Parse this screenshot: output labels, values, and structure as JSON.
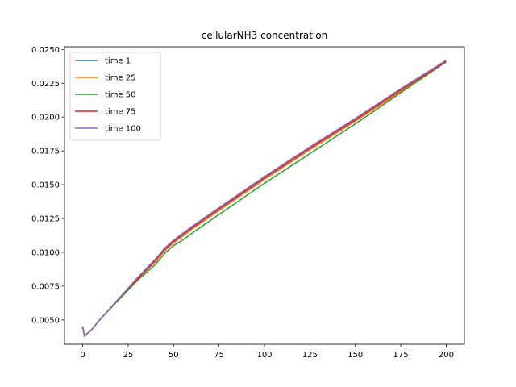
{
  "chart_data": {
    "type": "line",
    "title": "cellularNH3 concentration",
    "xlabel": "",
    "ylabel": "",
    "xlim": [
      -10,
      210
    ],
    "ylim": [
      0.0032,
      0.0252
    ],
    "xticks": [
      0,
      25,
      50,
      75,
      100,
      125,
      150,
      175,
      200
    ],
    "xtick_labels": [
      "0",
      "25",
      "50",
      "75",
      "100",
      "125",
      "150",
      "175",
      "200"
    ],
    "yticks": [
      0.005,
      0.0075,
      0.01,
      0.0125,
      0.015,
      0.0175,
      0.02,
      0.0225,
      0.025
    ],
    "ytick_labels": [
      "0.0050",
      "0.0075",
      "0.0100",
      "0.0125",
      "0.0150",
      "0.0175",
      "0.0200",
      "0.0225",
      "0.0250"
    ],
    "grid": false,
    "legend_position": "top-left",
    "series": [
      {
        "name": "time 1",
        "color": "#1f77b4",
        "x": [
          0,
          1,
          5,
          10,
          20,
          30,
          40,
          45,
          50,
          55,
          60,
          75,
          100,
          125,
          150,
          175,
          200
        ],
        "y": [
          0.0045,
          0.0038,
          0.0043,
          0.0051,
          0.0066,
          0.008,
          0.0093,
          0.0101,
          0.0107,
          0.0112,
          0.0117,
          0.0131,
          0.0154,
          0.0176,
          0.0197,
          0.0219,
          0.0241
        ]
      },
      {
        "name": "time 25",
        "color": "#ff7f0e",
        "x": [
          0,
          1,
          5,
          10,
          20,
          30,
          40,
          45,
          50,
          55,
          60,
          75,
          100,
          125,
          150,
          175,
          200
        ],
        "y": [
          0.0045,
          0.0038,
          0.0043,
          0.0051,
          0.0066,
          0.008,
          0.0093,
          0.0101,
          0.0107,
          0.0112,
          0.0117,
          0.0131,
          0.0154,
          0.0176,
          0.0197,
          0.0219,
          0.0241
        ]
      },
      {
        "name": "time 50",
        "color": "#2ca02c",
        "x": [
          0,
          1,
          5,
          10,
          20,
          30,
          40,
          45,
          50,
          55,
          60,
          75,
          100,
          125,
          150,
          175,
          200
        ],
        "y": [
          0.0045,
          0.0038,
          0.0043,
          0.0051,
          0.0065,
          0.0079,
          0.0091,
          0.0099,
          0.0105,
          0.0109,
          0.0114,
          0.0128,
          0.0151,
          0.0173,
          0.0195,
          0.0218,
          0.0241
        ]
      },
      {
        "name": "time 75",
        "color": "#d62728",
        "x": [
          0,
          1,
          5,
          10,
          20,
          30,
          40,
          45,
          50,
          55,
          60,
          75,
          100,
          125,
          150,
          175,
          200
        ],
        "y": [
          0.0045,
          0.0038,
          0.0043,
          0.0051,
          0.0066,
          0.008,
          0.0094,
          0.0102,
          0.0108,
          0.0113,
          0.0118,
          0.0132,
          0.0155,
          0.0177,
          0.0198,
          0.022,
          0.0241
        ]
      },
      {
        "name": "time 100",
        "color": "#9467bd",
        "x": [
          0,
          1,
          5,
          10,
          20,
          30,
          40,
          45,
          50,
          55,
          60,
          75,
          100,
          125,
          150,
          175,
          200
        ],
        "y": [
          0.0045,
          0.0038,
          0.0043,
          0.0051,
          0.0066,
          0.0081,
          0.0095,
          0.0103,
          0.0109,
          0.0114,
          0.0119,
          0.0133,
          0.0156,
          0.0178,
          0.0199,
          0.0221,
          0.0242
        ]
      }
    ]
  }
}
